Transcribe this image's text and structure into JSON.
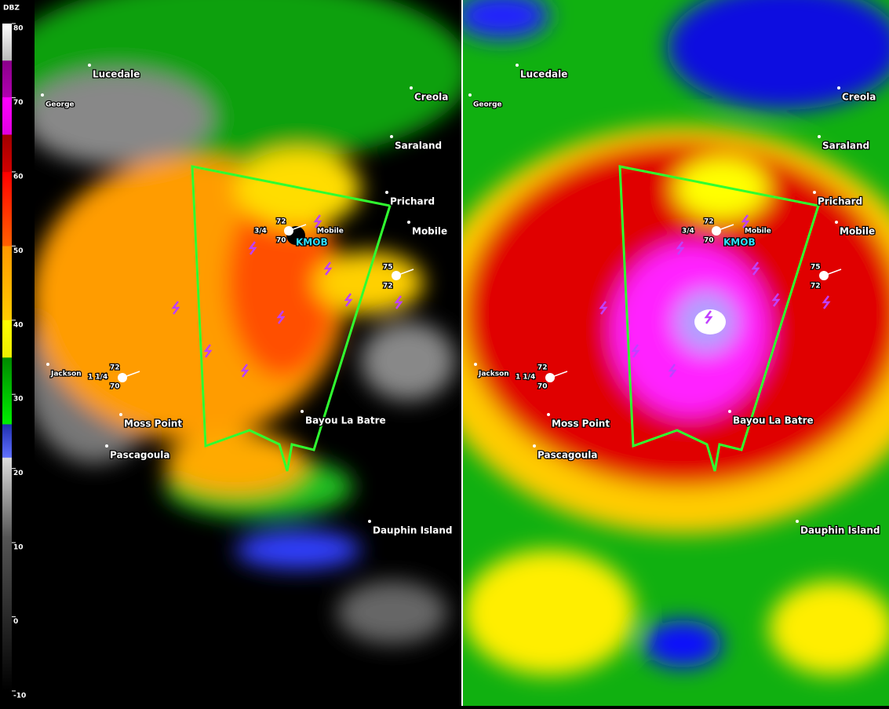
{
  "legend": {
    "title": "DBZ",
    "ticks": [
      80,
      70,
      60,
      50,
      40,
      30,
      20,
      10,
      0,
      -10
    ]
  },
  "radar": "KMOB",
  "cities": [
    "Lucedale",
    "George",
    "Creola",
    "Saraland",
    "Prichard",
    "Mobile",
    "Moss Point",
    "Pascagoula",
    "Bayou La Batre",
    "Dauphin Island",
    "Jackson"
  ],
  "station_labels": [
    "Mobile"
  ],
  "observations": [
    {
      "temp": "72",
      "vis": "3/4",
      "dew": "70"
    },
    {
      "temp": "75",
      "vis": "",
      "dew": "72"
    },
    {
      "temp": "72",
      "vis": "1 1/4",
      "dew": "70"
    }
  ]
}
